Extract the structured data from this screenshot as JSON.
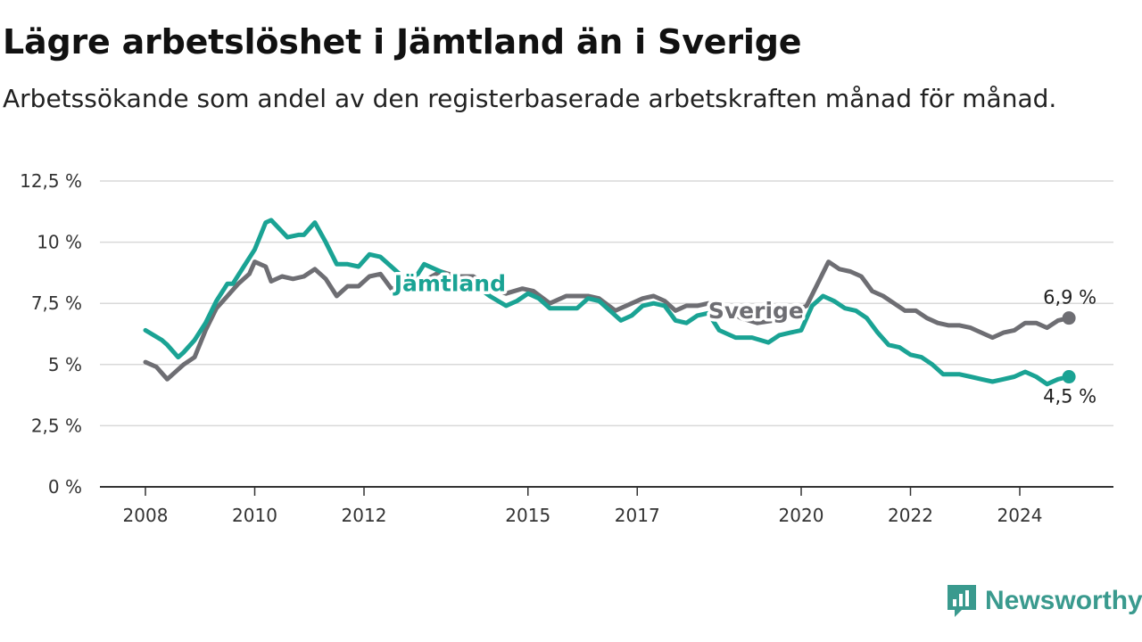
{
  "chart_data": {
    "type": "line",
    "title": "Lägre arbetslöshet i Jämtland än i Sverige",
    "subtitle": "Arbetssökande som andel av den registerbaserade arbetskraften månad för månad.",
    "xlabel": "",
    "ylabel": "",
    "xlim": [
      2007.75,
      2025.5
    ],
    "ylim": [
      0,
      12.5
    ],
    "yticks": [
      0,
      2.5,
      5,
      7.5,
      10,
      12.5
    ],
    "ytick_labels": [
      "0 %",
      "2,5 %",
      "5 %",
      "7,5 %",
      "10 %",
      "12,5 %"
    ],
    "xticks": [
      2008,
      2010,
      2012,
      2015,
      2017,
      2020,
      2022,
      2024
    ],
    "xtick_labels": [
      "2008",
      "2010",
      "2012",
      "2015",
      "2017",
      "2020",
      "2022",
      "2024"
    ],
    "grid": true,
    "legend": "inline labels",
    "colors": {
      "jamtland": "#1aa394",
      "sverige": "#6e6e73",
      "grid": "#d9d9d9",
      "axis": "#333333"
    },
    "series": [
      {
        "name": "Jämtland",
        "color": "#1aa394",
        "end_label": "4,5 %",
        "x": [
          2008.0,
          2008.3,
          2008.4,
          2008.6,
          2008.7,
          2008.9,
          2009.1,
          2009.3,
          2009.5,
          2009.6,
          2009.8,
          2010.0,
          2010.2,
          2010.3,
          2010.6,
          2010.8,
          2010.9,
          2011.1,
          2011.3,
          2011.5,
          2011.7,
          2011.9,
          2012.1,
          2012.3,
          2012.5,
          2012.7,
          2012.9,
          2013.1,
          2013.4,
          2013.7,
          2014.0,
          2014.3,
          2014.6,
          2014.8,
          2015.0,
          2015.2,
          2015.4,
          2015.7,
          2015.9,
          2016.1,
          2016.3,
          2016.5,
          2016.7,
          2016.9,
          2017.1,
          2017.3,
          2017.5,
          2017.7,
          2017.9,
          2018.1,
          2018.3,
          2018.5,
          2018.8,
          2019.1,
          2019.4,
          2019.6,
          2019.8,
          2020.0,
          2020.2,
          2020.4,
          2020.6,
          2020.8,
          2021.0,
          2021.2,
          2021.4,
          2021.6,
          2021.8,
          2022.0,
          2022.2,
          2022.4,
          2022.6,
          2022.9,
          2023.1,
          2023.3,
          2023.5,
          2023.7,
          2023.9,
          2024.1,
          2024.3,
          2024.5,
          2024.7,
          2024.9
        ],
        "y": [
          6.4,
          6.0,
          5.8,
          5.3,
          5.5,
          6.0,
          6.7,
          7.6,
          8.3,
          8.3,
          9.0,
          9.7,
          10.8,
          10.9,
          10.2,
          10.3,
          10.3,
          10.8,
          10.0,
          9.1,
          9.1,
          9.0,
          9.5,
          9.4,
          9.0,
          8.6,
          8.4,
          9.1,
          8.8,
          8.4,
          8.3,
          7.8,
          7.4,
          7.6,
          7.9,
          7.7,
          7.3,
          7.3,
          7.3,
          7.7,
          7.6,
          7.2,
          6.8,
          7.0,
          7.4,
          7.5,
          7.4,
          6.8,
          6.7,
          7.0,
          7.1,
          6.4,
          6.1,
          6.1,
          5.9,
          6.2,
          6.3,
          6.4,
          7.4,
          7.8,
          7.6,
          7.3,
          7.2,
          6.9,
          6.3,
          5.8,
          5.7,
          5.4,
          5.3,
          5.0,
          4.6,
          4.6,
          4.5,
          4.4,
          4.3,
          4.4,
          4.5,
          4.7,
          4.5,
          4.2,
          4.4,
          4.5
        ]
      },
      {
        "name": "Sverige",
        "color": "#6e6e73",
        "end_label": "6,9 %",
        "x": [
          2008.0,
          2008.2,
          2008.4,
          2008.5,
          2008.7,
          2008.9,
          2009.1,
          2009.3,
          2009.5,
          2009.7,
          2009.9,
          2010.0,
          2010.2,
          2010.3,
          2010.5,
          2010.7,
          2010.9,
          2011.1,
          2011.3,
          2011.5,
          2011.7,
          2011.9,
          2012.1,
          2012.3,
          2012.5,
          2012.8,
          2013.0,
          2013.4,
          2013.7,
          2014.0,
          2014.3,
          2014.6,
          2014.9,
          2015.1,
          2015.4,
          2015.7,
          2015.9,
          2016.1,
          2016.3,
          2016.6,
          2016.9,
          2017.1,
          2017.3,
          2017.5,
          2017.7,
          2017.9,
          2018.1,
          2018.3,
          2018.6,
          2018.9,
          2019.2,
          2019.5,
          2019.8,
          2020.1,
          2020.3,
          2020.5,
          2020.7,
          2020.9,
          2021.1,
          2021.3,
          2021.5,
          2021.7,
          2021.9,
          2022.1,
          2022.3,
          2022.5,
          2022.7,
          2022.9,
          2023.1,
          2023.3,
          2023.5,
          2023.7,
          2023.9,
          2024.1,
          2024.3,
          2024.5,
          2024.7,
          2024.9
        ],
        "y": [
          5.1,
          4.9,
          4.4,
          4.6,
          5.0,
          5.3,
          6.4,
          7.3,
          7.8,
          8.3,
          8.7,
          9.2,
          9.0,
          8.4,
          8.6,
          8.5,
          8.6,
          8.9,
          8.5,
          7.8,
          8.2,
          8.2,
          8.6,
          8.7,
          8.1,
          8.2,
          8.3,
          8.8,
          8.6,
          8.6,
          8.2,
          7.9,
          8.1,
          8.0,
          7.5,
          7.8,
          7.8,
          7.8,
          7.7,
          7.2,
          7.5,
          7.7,
          7.8,
          7.6,
          7.2,
          7.4,
          7.4,
          7.5,
          7.3,
          6.9,
          6.7,
          6.8,
          7.1,
          7.4,
          8.3,
          9.2,
          8.9,
          8.8,
          8.6,
          8.0,
          7.8,
          7.5,
          7.2,
          7.2,
          6.9,
          6.7,
          6.6,
          6.6,
          6.5,
          6.3,
          6.1,
          6.3,
          6.4,
          6.7,
          6.7,
          6.5,
          6.8,
          6.9
        ]
      }
    ]
  },
  "brand": {
    "name": "Newsworthy",
    "icon": "newsworthy-logo-icon",
    "color": "#3a9a8e"
  }
}
